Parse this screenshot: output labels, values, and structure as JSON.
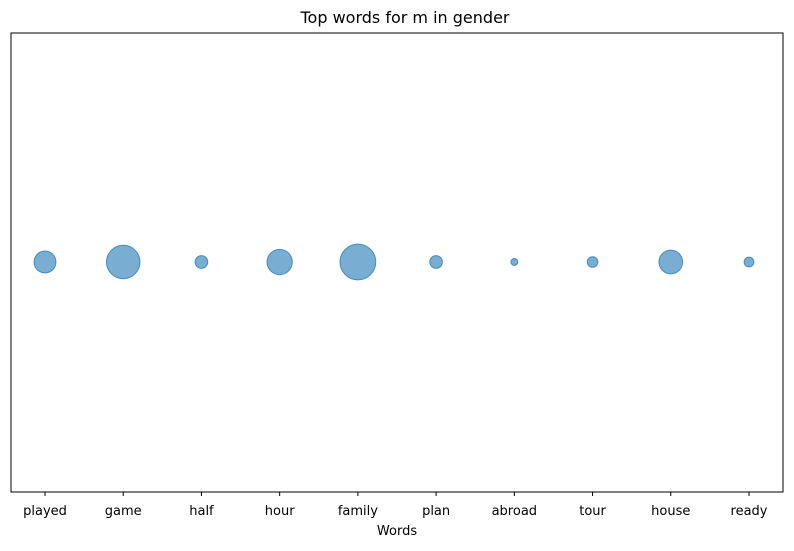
{
  "chart_data": {
    "type": "scatter",
    "title": "Top words for m in gender",
    "xlabel": "Words",
    "ylabel": "",
    "categories": [
      "played",
      "game",
      "half",
      "hour",
      "family",
      "plan",
      "abroad",
      "tour",
      "house",
      "ready"
    ],
    "y_values": [
      0,
      0,
      0,
      0,
      0,
      0,
      0,
      0,
      0,
      0
    ],
    "sizes": [
      3,
      7,
      1,
      4,
      8,
      1,
      0.3,
      0.7,
      3.5,
      0.6
    ],
    "y_axis_visible": false,
    "grid": false,
    "legend": "none",
    "marker_color": "#1f77b4",
    "marker_alpha": 0.6
  }
}
